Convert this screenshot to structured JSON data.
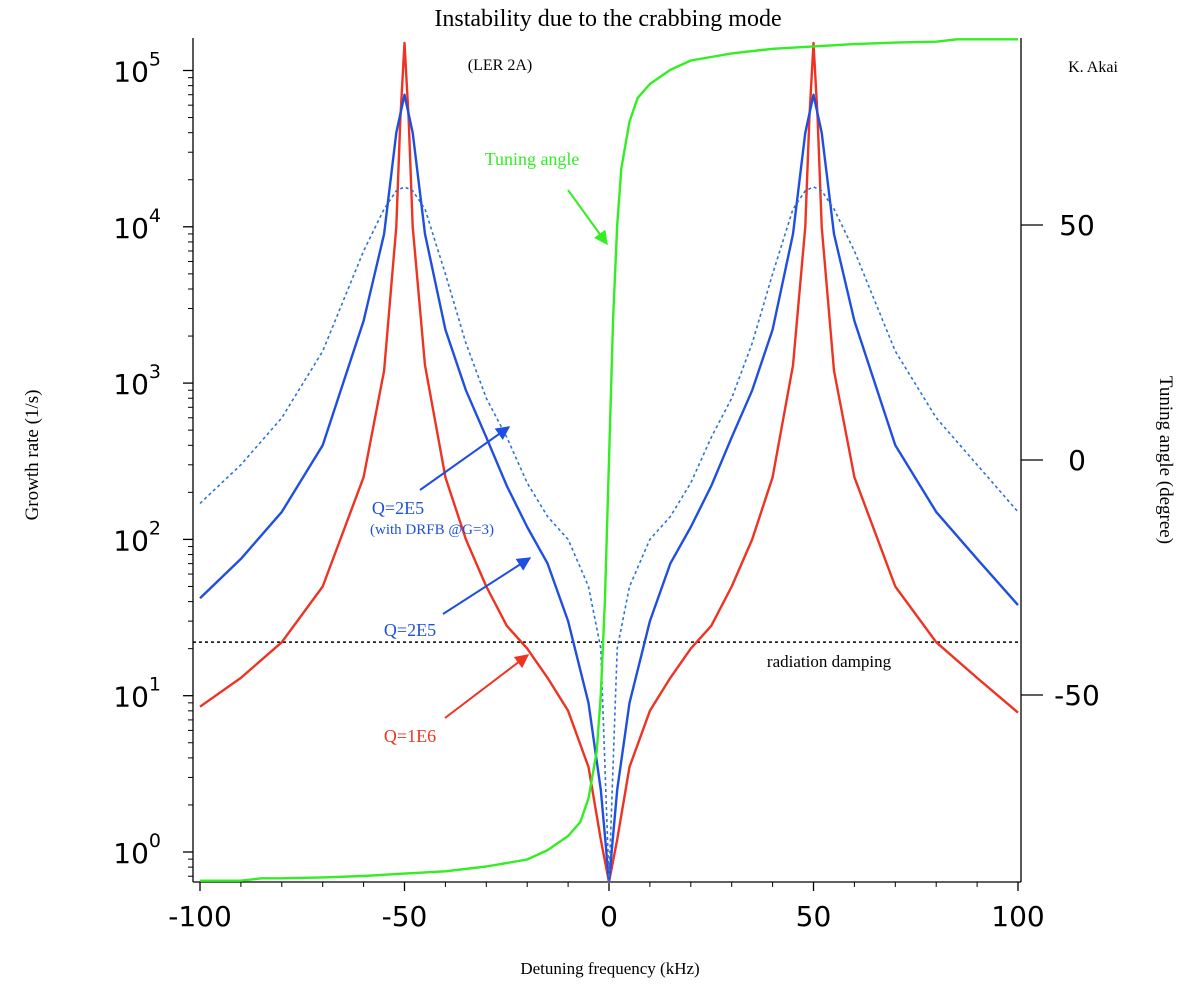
{
  "chart_data": {
    "type": "line",
    "title": "Instability due to the crabbing mode",
    "subtitle": "(LER 2A)",
    "author": "K. Akai",
    "xlabel": "Detuning frequency (kHz)",
    "ylabel_left": "Growth rate (1/s)",
    "ylabel_right": "Tuning angle (degree)",
    "xlim": [
      -100,
      100
    ],
    "ylim_left": [
      0.65,
      150000
    ],
    "y_left_scale": "log",
    "ylim_right": [
      -92,
      92
    ],
    "x_ticks": [
      "-100",
      "-50",
      "0",
      "50",
      "100"
    ],
    "x_tick_values": [
      -100,
      -50,
      0,
      50,
      100
    ],
    "y_left_ticks": [
      {
        "base": "10",
        "exp": "0",
        "value": 1
      },
      {
        "base": "10",
        "exp": "1",
        "value": 10
      },
      {
        "base": "10",
        "exp": "2",
        "value": 100
      },
      {
        "base": "10",
        "exp": "3",
        "value": 1000
      },
      {
        "base": "10",
        "exp": "4",
        "value": 10000
      },
      {
        "base": "10",
        "exp": "5",
        "value": 100000
      }
    ],
    "y_right_ticks": [
      "-50",
      "0",
      "50"
    ],
    "y_right_tick_values": [
      -50,
      0,
      50
    ],
    "grid": false,
    "series": [
      {
        "name": "Q=1E6",
        "color": "#ee3322",
        "axis": "left",
        "style": "solid",
        "x": [
          -100,
          -90,
          -80,
          -70,
          -60,
          -55,
          -52,
          -51,
          -50,
          -49,
          -48,
          -45,
          -40,
          -35,
          -30,
          -25,
          -20,
          -15,
          -10,
          -5,
          -2,
          0,
          2,
          5,
          10,
          15,
          20,
          25,
          30,
          35,
          40,
          45,
          48,
          49,
          50,
          51,
          52,
          55,
          60,
          70,
          80,
          90,
          100
        ],
        "y": [
          8.5,
          13,
          22,
          50,
          250,
          1200,
          10000,
          50000,
          150000,
          50000,
          10000,
          1300,
          250,
          100,
          50,
          28,
          20,
          13,
          8,
          3.5,
          1.2,
          0.6,
          1.2,
          3.5,
          8,
          13,
          20,
          28,
          50,
          100,
          250,
          1300,
          10000,
          50000,
          150000,
          50000,
          10000,
          1200,
          250,
          50,
          22,
          13,
          7.8
        ]
      },
      {
        "name": "Q=2E5",
        "color": "#1f4fe0",
        "axis": "left",
        "style": "solid",
        "x": [
          -100,
          -90,
          -80,
          -70,
          -60,
          -55,
          -52,
          -50,
          -48,
          -45,
          -40,
          -35,
          -30,
          -25,
          -20,
          -15,
          -10,
          -5,
          -2,
          0,
          2,
          5,
          10,
          15,
          20,
          25,
          30,
          35,
          40,
          45,
          48,
          50,
          52,
          55,
          60,
          70,
          80,
          90,
          100
        ],
        "y": [
          42,
          75,
          150,
          400,
          2500,
          9000,
          40000,
          70000,
          40000,
          9000,
          2200,
          900,
          450,
          220,
          120,
          70,
          30,
          9,
          2.5,
          0.65,
          2.5,
          9,
          30,
          70,
          120,
          220,
          450,
          900,
          2200,
          9000,
          40000,
          70000,
          40000,
          9000,
          2500,
          400,
          150,
          75,
          38
        ]
      },
      {
        "name": "Q=2E5 (with DRFB @G=3)",
        "color": "#2a70e0",
        "axis": "left",
        "style": "dotted",
        "x": [
          -100,
          -90,
          -80,
          -70,
          -60,
          -55,
          -52,
          -50,
          -48,
          -45,
          -40,
          -35,
          -30,
          -25,
          -20,
          -15,
          -10,
          -5,
          -2,
          0,
          2,
          5,
          10,
          15,
          20,
          25,
          30,
          35,
          40,
          45,
          48,
          50,
          52,
          55,
          60,
          70,
          80,
          90,
          100
        ],
        "y": [
          170,
          300,
          600,
          1600,
          7000,
          13000,
          17000,
          18000,
          17000,
          13000,
          5000,
          1800,
          800,
          450,
          230,
          140,
          100,
          50,
          20,
          0.65,
          20,
          50,
          100,
          140,
          230,
          450,
          800,
          1800,
          5000,
          13000,
          17000,
          18000,
          17000,
          13000,
          7000,
          1600,
          600,
          300,
          150
        ]
      },
      {
        "name": "Tuning angle",
        "color": "#33ee22",
        "axis": "right",
        "style": "solid",
        "x": [
          -100,
          -90,
          -85,
          -80,
          -70,
          -60,
          -50,
          -40,
          -30,
          -20,
          -15,
          -10,
          -7,
          -5,
          -3,
          -2,
          -1,
          0,
          1,
          2,
          3,
          5,
          7,
          10,
          15,
          20,
          30,
          40,
          50,
          60,
          70,
          80,
          85,
          90,
          100
        ],
        "y": [
          -89.5,
          -89.5,
          -89,
          -89,
          -88.8,
          -88.5,
          -88,
          -87.5,
          -86.5,
          -85,
          -83,
          -80,
          -77,
          -72,
          -62,
          -50,
          -30,
          0,
          30,
          50,
          62,
          72,
          77,
          80,
          83,
          85,
          86.5,
          87.5,
          88,
          88.5,
          88.8,
          89,
          89.5,
          89.5,
          89.5
        ]
      }
    ],
    "annotations": [
      {
        "text": "Tuning angle",
        "color": "#33ee22"
      },
      {
        "text": "Q=2E5",
        "color": "#1f4fe0"
      },
      {
        "text": "(with DRFB @G=3)",
        "color": "#1f4fe0"
      },
      {
        "text": "Q=2E5",
        "color": "#1f4fe0"
      },
      {
        "text": "Q=1E6",
        "color": "#ee3322"
      },
      {
        "text": "radiation damping",
        "color": "#000000"
      }
    ],
    "reference_lines": [
      {
        "name": "radiation damping",
        "axis": "left",
        "y": 22,
        "style": "dotted",
        "color": "#000000"
      }
    ]
  }
}
